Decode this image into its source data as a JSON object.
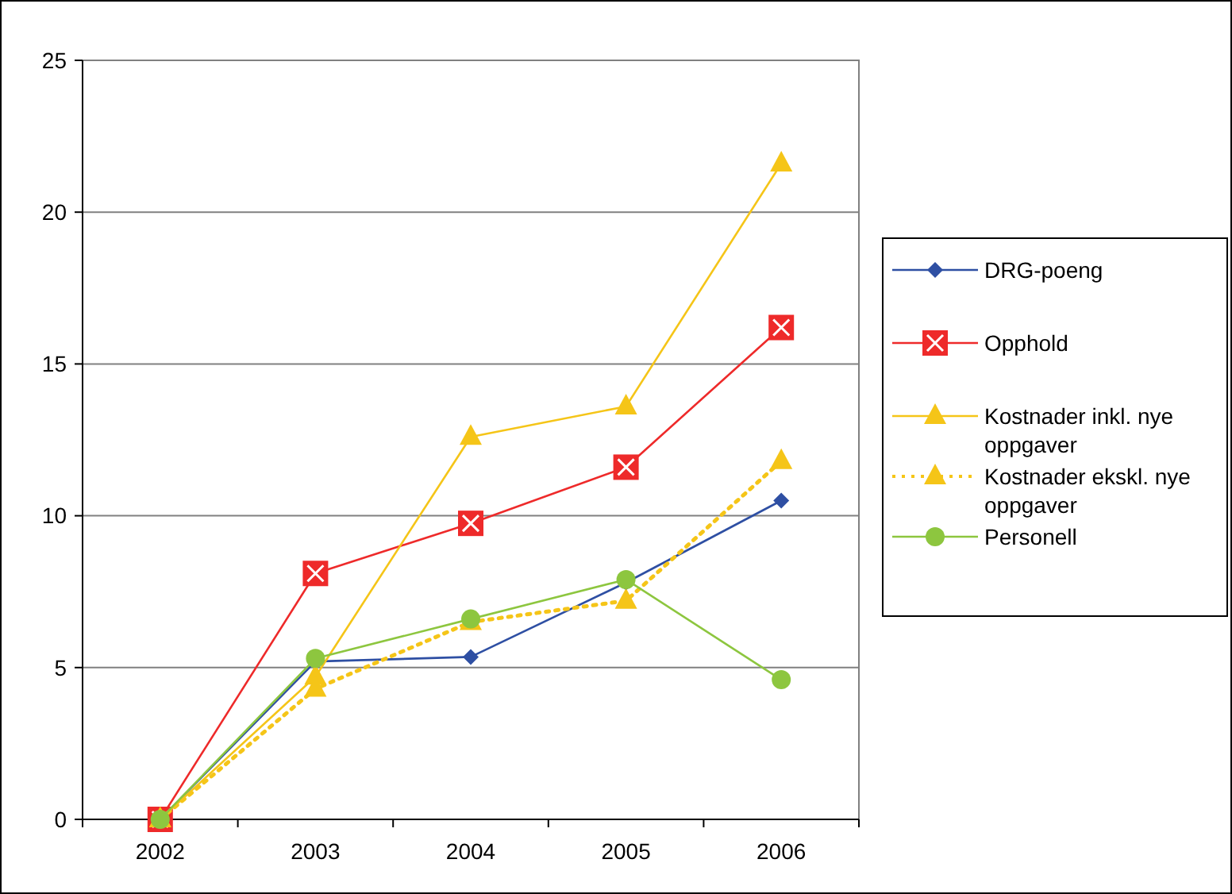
{
  "chart_data": {
    "type": "line",
    "categories": [
      "2002",
      "2003",
      "2004",
      "2005",
      "2006"
    ],
    "ylim": [
      0,
      25
    ],
    "yticks": [
      0,
      5,
      10,
      15,
      20,
      25
    ],
    "grid": "y",
    "legend": "right",
    "series": [
      {
        "name": "DRG-poeng",
        "color": "#2e4fa3",
        "marker": "diamond",
        "line_style": "solid",
        "values": [
          0,
          5.2,
          5.35,
          7.8,
          10.5
        ]
      },
      {
        "name": "Opphold",
        "color": "#ee2a2a",
        "marker": "square",
        "line_style": "solid",
        "values": [
          0,
          8.1,
          9.75,
          11.6,
          16.2
        ]
      },
      {
        "name": "Kostnader inkl. nye oppgaver",
        "color": "#f5c518",
        "marker": "triangle",
        "line_style": "solid",
        "values": [
          0,
          4.7,
          12.6,
          13.6,
          21.6
        ]
      },
      {
        "name": "Kostnader ekskl. nye oppgaver",
        "color": "#f5c518",
        "marker": "triangle",
        "line_style": "dotted",
        "values": [
          0,
          4.3,
          6.5,
          7.2,
          11.8
        ]
      },
      {
        "name": "Personell",
        "color": "#8dc63f",
        "marker": "circle",
        "line_style": "solid",
        "values": [
          0,
          5.3,
          6.6,
          7.9,
          4.6
        ]
      }
    ]
  }
}
